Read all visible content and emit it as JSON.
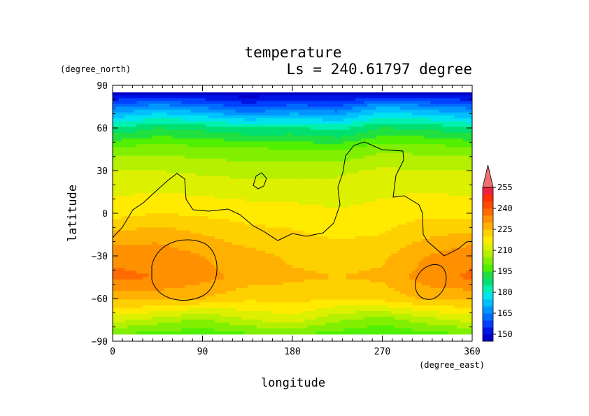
{
  "chart_data": {
    "type": "heatmap",
    "title": "temperature",
    "subtitle": "Ls = 240.61797 degree",
    "xlabel": "longitude",
    "ylabel": "latitude",
    "xunit": "(degree_east)",
    "yunit": "(degree_north)",
    "xlim": [
      0,
      360
    ],
    "ylim": [
      -90,
      90
    ],
    "x_ticks": [
      "0",
      "90",
      "180",
      "270",
      "360"
    ],
    "y_ticks": [
      "90",
      "60",
      "30",
      "0",
      "−30",
      "−60",
      "−90"
    ],
    "colorbar": {
      "levels": [
        145,
        150,
        155,
        160,
        165,
        170,
        175,
        180,
        185,
        190,
        195,
        200,
        205,
        210,
        215,
        220,
        225,
        230,
        235,
        240,
        245,
        250,
        255,
        260
      ],
      "tick_labels": [
        "150",
        "165",
        "180",
        "195",
        "210",
        "225",
        "240",
        "255"
      ],
      "colors": [
        "#0000c8",
        "#0014e6",
        "#0040ff",
        "#006cff",
        "#0096ff",
        "#00c0ff",
        "#00e4f0",
        "#00f0b0",
        "#00e070",
        "#20e040",
        "#50f000",
        "#80f000",
        "#b4f000",
        "#dcf000",
        "#ffea00",
        "#ffd000",
        "#ffb000",
        "#ff9000",
        "#ff6a00",
        "#ff4a00",
        "#ff3000",
        "#f02040",
        "#f07070"
      ],
      "extend": "max"
    },
    "lon": [
      0,
      45,
      90,
      135,
      180,
      225,
      270,
      315,
      360
    ],
    "lat": [
      85,
      75,
      60,
      45,
      30,
      15,
      0,
      -15,
      -30,
      -45,
      -60,
      -75,
      -85
    ],
    "values": [
      [
        146,
        146,
        146,
        146,
        146,
        146,
        146,
        146,
        146
      ],
      [
        163,
        168,
        164,
        158,
        162,
        160,
        170,
        166,
        163
      ],
      [
        185,
        190,
        188,
        185,
        186,
        183,
        190,
        189,
        185
      ],
      [
        202,
        203,
        202,
        201,
        200,
        199,
        204,
        203,
        202
      ],
      [
        210,
        210,
        209,
        208,
        208,
        209,
        211,
        210,
        210
      ],
      [
        214,
        215,
        214,
        213,
        213,
        212,
        214,
        215,
        214
      ],
      [
        218,
        220,
        219,
        218,
        217,
        216,
        217,
        219,
        218
      ],
      [
        226,
        228,
        225,
        222,
        221,
        219,
        220,
        224,
        226
      ],
      [
        234,
        233,
        230,
        227,
        224,
        223,
        224,
        230,
        234
      ],
      [
        236,
        235,
        232,
        228,
        226,
        225,
        226,
        233,
        236
      ],
      [
        226,
        227,
        225,
        221,
        222,
        220,
        222,
        226,
        226
      ],
      [
        212,
        208,
        204,
        210,
        213,
        206,
        202,
        208,
        212
      ],
      [
        200,
        198,
        197,
        199,
        200,
        198,
        196,
        198,
        200
      ]
    ]
  }
}
